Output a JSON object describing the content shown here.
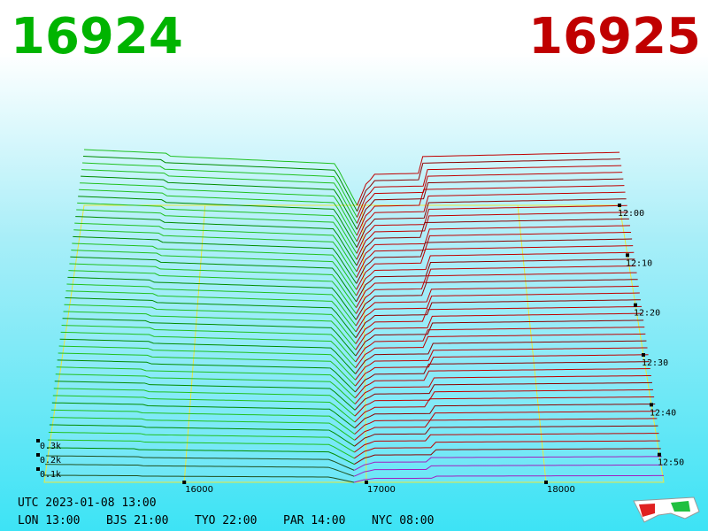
{
  "header": {
    "bid": "16924",
    "ask": "16925"
  },
  "price_axis": {
    "labels": [
      "16000",
      "17000",
      "18000"
    ]
  },
  "time_axis": {
    "labels": [
      "12:00",
      "12:10",
      "12:20",
      "12:30",
      "12:40",
      "12:50"
    ]
  },
  "depth_axis": {
    "labels": [
      "0.3k",
      "0.2k",
      "0.1k"
    ]
  },
  "footer": {
    "utc": "UTC 2023-01-08 13:00",
    "zones": [
      "LON 13:00",
      "BJS 21:00",
      "TYO 22:00",
      "PAR 14:00",
      "NYC 08:00"
    ]
  }
}
